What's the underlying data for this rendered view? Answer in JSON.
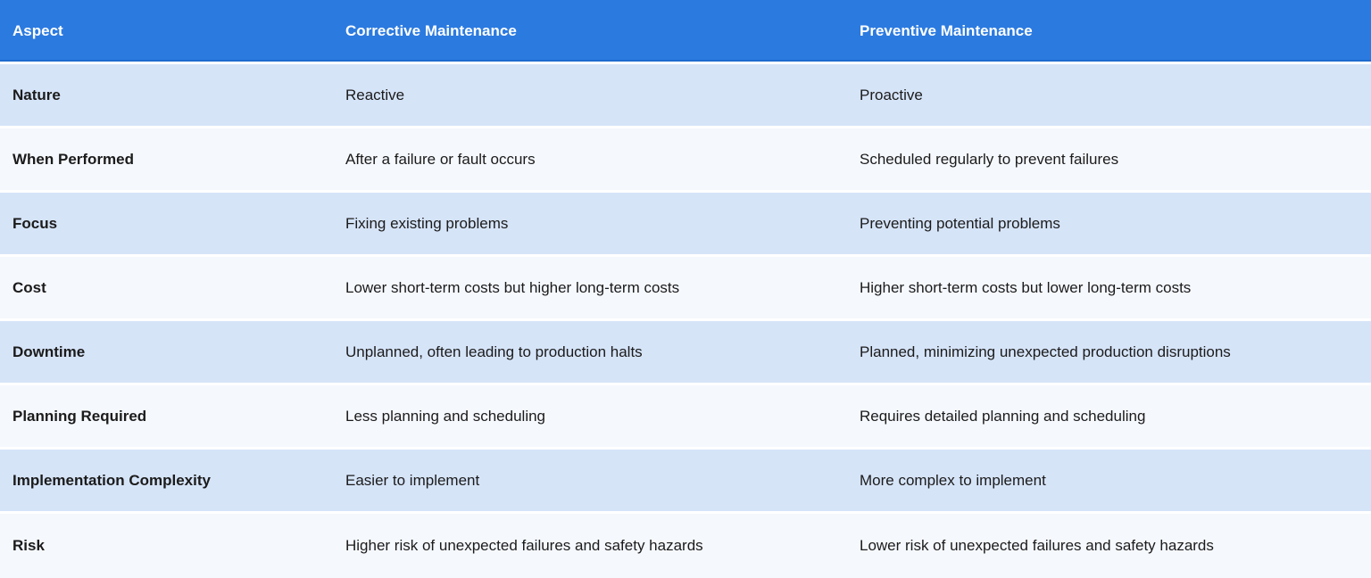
{
  "chart_data": {
    "type": "table",
    "columns": [
      "Aspect",
      "Corrective Maintenance",
      "Preventive Maintenance"
    ],
    "rows": [
      [
        "Nature",
        "Reactive",
        "Proactive"
      ],
      [
        "When Performed",
        "After a failure or fault occurs",
        "Scheduled regularly to prevent failures"
      ],
      [
        "Focus",
        "Fixing existing problems",
        "Preventing potential problems"
      ],
      [
        "Cost",
        "Lower short-term costs but higher long-term costs",
        "Higher short-term costs but lower long-term costs"
      ],
      [
        "Downtime",
        "Unplanned, often leading to production halts",
        "Planned, minimizing unexpected production disruptions"
      ],
      [
        "Planning Required",
        "Less planning and scheduling",
        "Requires detailed planning and scheduling"
      ],
      [
        "Implementation Complexity",
        "Easier to implement",
        "More complex to implement"
      ],
      [
        "Risk",
        "Higher risk of unexpected failures and safety hazards",
        "Lower risk of unexpected failures and safety hazards"
      ]
    ],
    "layout": {
      "header_position": "top",
      "row_striping": "odd rows light blue, even rows near-white"
    }
  },
  "colors": {
    "header_bg": "#2b7ae0",
    "header_edge": "#1e6ace",
    "header_text": "#ffffff",
    "row_alt_bg": "#d6e4f8",
    "row_plain_bg": "#f5f8fd",
    "body_text": "#1b1b1b",
    "separator": "#ffffff"
  }
}
